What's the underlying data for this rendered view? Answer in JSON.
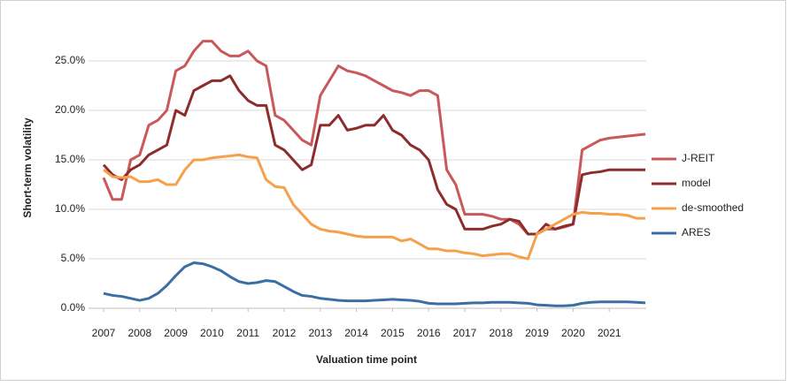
{
  "chart_data": {
    "type": "line",
    "y_label": "Short-term volatility",
    "x_label": "Valuation time point",
    "xlim": [
      2007,
      2022
    ],
    "xticks": [
      2007,
      2008,
      2009,
      2010,
      2011,
      2012,
      2013,
      2014,
      2015,
      2016,
      2017,
      2018,
      2019,
      2020,
      2021
    ],
    "ylim": [
      0,
      27.5
    ],
    "yticks": [
      {
        "value": 0,
        "label": "0.0%"
      },
      {
        "value": 5,
        "label": "5.0%"
      },
      {
        "value": 10,
        "label": "10.0%"
      },
      {
        "value": 15,
        "label": "15.0%"
      },
      {
        "value": 20,
        "label": "20.0%"
      },
      {
        "value": 25,
        "label": "25.0%"
      }
    ],
    "grid": true,
    "legend": "right",
    "x": [
      2007,
      2007.25,
      2007.5,
      2007.75,
      2008,
      2008.25,
      2008.5,
      2008.75,
      2009,
      2009.25,
      2009.5,
      2009.75,
      2010,
      2010.25,
      2010.5,
      2010.75,
      2011,
      2011.25,
      2011.5,
      2011.75,
      2012,
      2012.25,
      2012.5,
      2012.75,
      2013,
      2013.25,
      2013.5,
      2013.75,
      2014,
      2014.25,
      2014.5,
      2014.75,
      2015,
      2015.25,
      2015.5,
      2015.75,
      2016,
      2016.25,
      2016.5,
      2016.75,
      2017,
      2017.25,
      2017.5,
      2017.75,
      2018,
      2018.25,
      2018.5,
      2018.75,
      2019,
      2019.25,
      2019.5,
      2019.75,
      2020,
      2020.25,
      2020.5,
      2020.75,
      2021,
      2021.25,
      2021.5,
      2021.75,
      2022
    ],
    "series": [
      {
        "name": "J-REIT",
        "color": "#c9585a",
        "values": [
          13.2,
          11,
          11,
          15,
          15.5,
          18.5,
          19,
          20,
          24,
          24.5,
          26,
          27,
          27,
          26,
          25.5,
          25.5,
          26,
          25,
          24.5,
          19.5,
          19,
          18,
          17,
          16.5,
          21.5,
          23,
          24.5,
          24,
          23.8,
          23.5,
          23,
          22.5,
          22,
          21.8,
          21.5,
          22,
          22,
          21.5,
          14,
          12.5,
          9.5,
          9.5,
          9.5,
          9.3,
          9,
          9,
          8.5,
          7.5,
          7.5,
          8,
          8,
          8.2,
          8.5,
          16,
          16.5,
          17,
          17.2,
          17.3,
          17.4,
          17.5,
          17.6
        ]
      },
      {
        "name": "model",
        "color": "#8e2b2b",
        "values": [
          14.5,
          13.5,
          13.0,
          14.0,
          14.5,
          15.5,
          16,
          16.5,
          20,
          19.5,
          22,
          22.5,
          23,
          23,
          23.5,
          22,
          21,
          20.5,
          20.5,
          16.5,
          16,
          15,
          14,
          14.5,
          18.5,
          18.5,
          19.5,
          18,
          18.2,
          18.5,
          18.5,
          19.5,
          18,
          17.5,
          16.5,
          16,
          15,
          12,
          10.5,
          10,
          8,
          8,
          8,
          8.3,
          8.5,
          9,
          8.8,
          7.5,
          7.5,
          8.5,
          8,
          8.3,
          8.5,
          13.5,
          13.7,
          13.8,
          14,
          14,
          14,
          14,
          14
        ]
      },
      {
        "name": "de-smoothed",
        "color": "#f5a04b",
        "values": [
          14,
          13.3,
          13.2,
          13.3,
          12.8,
          12.8,
          13,
          12.5,
          12.5,
          14,
          15,
          15,
          15.2,
          15.3,
          15.4,
          15.5,
          15.3,
          15.2,
          13,
          12.3,
          12.2,
          10.5,
          9.5,
          8.5,
          8,
          7.8,
          7.7,
          7.5,
          7.3,
          7.2,
          7.2,
          7.2,
          7.2,
          6.8,
          7,
          6.5,
          6,
          6,
          5.8,
          5.8,
          5.6,
          5.5,
          5.3,
          5.4,
          5.5,
          5.5,
          5.2,
          5.0,
          7.5,
          8,
          8.5,
          9,
          9.5,
          9.7,
          9.6,
          9.6,
          9.5,
          9.5,
          9.4,
          9.1,
          9.1
        ]
      },
      {
        "name": "ARES",
        "color": "#3b6ea3",
        "values": [
          1.5,
          1.3,
          1.2,
          1.0,
          0.8,
          1.0,
          1.5,
          2.3,
          3.3,
          4.2,
          4.6,
          4.5,
          4.2,
          3.8,
          3.2,
          2.7,
          2.5,
          2.6,
          2.8,
          2.7,
          2.2,
          1.7,
          1.3,
          1.2,
          1.0,
          0.9,
          0.8,
          0.75,
          0.75,
          0.75,
          0.8,
          0.85,
          0.9,
          0.85,
          0.8,
          0.7,
          0.5,
          0.45,
          0.45,
          0.45,
          0.5,
          0.55,
          0.55,
          0.6,
          0.6,
          0.6,
          0.55,
          0.5,
          0.35,
          0.3,
          0.25,
          0.25,
          0.3,
          0.5,
          0.6,
          0.65,
          0.65,
          0.65,
          0.65,
          0.6,
          0.55
        ]
      }
    ]
  }
}
